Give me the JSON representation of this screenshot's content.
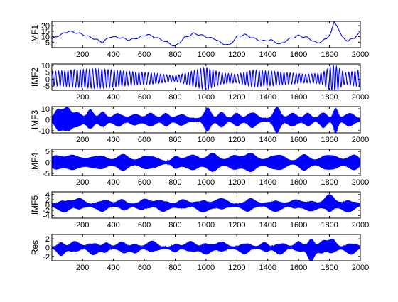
{
  "chart_data": [
    {
      "type": "line",
      "ylabel": "IMF1",
      "xlim": [
        1,
        2000
      ],
      "ylim": [
        0,
        24
      ],
      "yticks": [
        5,
        10,
        15,
        20
      ],
      "xticks": [
        200,
        400,
        600,
        800,
        1000,
        1200,
        1400,
        1600,
        1800,
        2000
      ],
      "xtick_labels": [
        "200",
        "400",
        "600",
        "800",
        "1000",
        "1200",
        "1400",
        "1600",
        "1800",
        "2000"
      ],
      "ytick_labels": [
        "5",
        "10",
        "15",
        "20"
      ],
      "series_color": "#0000ff",
      "style": "slow",
      "keypoints": [
        [
          1,
          8
        ],
        [
          60,
          12
        ],
        [
          110,
          15
        ],
        [
          180,
          13
        ],
        [
          260,
          9
        ],
        [
          330,
          5
        ],
        [
          380,
          10
        ],
        [
          450,
          9
        ],
        [
          500,
          7
        ],
        [
          560,
          9
        ],
        [
          620,
          12
        ],
        [
          700,
          8
        ],
        [
          760,
          4
        ],
        [
          800,
          1
        ],
        [
          860,
          9
        ],
        [
          920,
          13
        ],
        [
          980,
          11
        ],
        [
          1020,
          9
        ],
        [
          1060,
          8
        ],
        [
          1100,
          4
        ],
        [
          1150,
          2
        ],
        [
          1200,
          10
        ],
        [
          1250,
          12
        ],
        [
          1300,
          9
        ],
        [
          1360,
          6
        ],
        [
          1420,
          7
        ],
        [
          1480,
          3
        ],
        [
          1540,
          8
        ],
        [
          1600,
          11
        ],
        [
          1660,
          9
        ],
        [
          1720,
          4
        ],
        [
          1780,
          8
        ],
        [
          1810,
          14
        ],
        [
          1830,
          23
        ],
        [
          1850,
          20
        ],
        [
          1880,
          10
        ],
        [
          1920,
          6
        ],
        [
          1960,
          9
        ],
        [
          2000,
          14
        ]
      ]
    },
    {
      "type": "line",
      "ylabel": "IMF2",
      "xlim": [
        1,
        2000
      ],
      "ylim": [
        -8,
        11
      ],
      "yticks": [
        -5,
        0,
        5,
        10
      ],
      "xticks": [
        200,
        400,
        600,
        800,
        1000,
        1200,
        1400,
        1600,
        1800,
        2000
      ],
      "xtick_labels": [
        "200",
        "400",
        "600",
        "800",
        "1000",
        "1200",
        "1400",
        "1600",
        "1800",
        "2000"
      ],
      "ytick_labels": [
        "-5",
        "0",
        "5",
        "10"
      ],
      "series_color": "#0000ff",
      "style": "wave",
      "period": 20,
      "offset": 0.5,
      "amp_base": 1.5,
      "amp_points": [
        [
          1,
          5
        ],
        [
          120,
          6
        ],
        [
          300,
          7
        ],
        [
          500,
          5
        ],
        [
          650,
          4
        ],
        [
          800,
          2
        ],
        [
          900,
          5
        ],
        [
          1000,
          8
        ],
        [
          1100,
          4
        ],
        [
          1200,
          3
        ],
        [
          1300,
          6
        ],
        [
          1450,
          5
        ],
        [
          1550,
          4
        ],
        [
          1650,
          3
        ],
        [
          1750,
          4
        ],
        [
          1830,
          10
        ],
        [
          1900,
          4
        ],
        [
          2000,
          6
        ]
      ]
    },
    {
      "type": "line",
      "ylabel": "IMF3",
      "xlim": [
        1,
        2000
      ],
      "ylim": [
        -12,
        12
      ],
      "yticks": [
        -10,
        0,
        10
      ],
      "xticks": [
        200,
        400,
        600,
        800,
        1000,
        1200,
        1400,
        1600,
        1800,
        2000
      ],
      "xtick_labels": [
        "200",
        "400",
        "600",
        "800",
        "1000",
        "1200",
        "1400",
        "1600",
        "1800",
        "2000"
      ],
      "ytick_labels": [
        "-10",
        "0",
        "10"
      ],
      "series_color": "#0000ff",
      "style": "dense",
      "period": 5,
      "offset": 0,
      "amp_base": 1.5,
      "bursts": [
        [
          40,
          30,
          8
        ],
        [
          100,
          40,
          10
        ],
        [
          170,
          35,
          5
        ],
        [
          250,
          30,
          8
        ],
        [
          330,
          30,
          6
        ],
        [
          430,
          40,
          5
        ],
        [
          540,
          40,
          4
        ],
        [
          640,
          40,
          5
        ],
        [
          740,
          30,
          5
        ],
        [
          840,
          40,
          4
        ],
        [
          1010,
          30,
          10
        ],
        [
          1100,
          30,
          6
        ],
        [
          1200,
          30,
          5
        ],
        [
          1300,
          40,
          6
        ],
        [
          1460,
          30,
          11
        ],
        [
          1560,
          40,
          5
        ],
        [
          1660,
          30,
          5
        ],
        [
          1760,
          30,
          6
        ],
        [
          1840,
          20,
          11
        ],
        [
          1930,
          40,
          5
        ]
      ]
    },
    {
      "type": "line",
      "ylabel": "IMF4",
      "xlim": [
        1,
        2000
      ],
      "ylim": [
        -6,
        6
      ],
      "yticks": [
        -5,
        0,
        5
      ],
      "xticks": [
        200,
        400,
        600,
        800,
        1000,
        1200,
        1400,
        1600,
        1800,
        2000
      ],
      "xtick_labels": [
        "200",
        "400",
        "600",
        "800",
        "1000",
        "1200",
        "1400",
        "1600",
        "1800",
        "2000"
      ],
      "ytick_labels": [
        "-5",
        "0",
        "5"
      ],
      "series_color": "#0000ff",
      "style": "dense",
      "period": 4,
      "offset": 0,
      "amp_base": 0.8,
      "bursts": [
        [
          40,
          50,
          3
        ],
        [
          150,
          60,
          3
        ],
        [
          300,
          60,
          3
        ],
        [
          460,
          60,
          3
        ],
        [
          630,
          60,
          3
        ],
        [
          800,
          30,
          2
        ],
        [
          900,
          60,
          3
        ],
        [
          1040,
          60,
          3.5
        ],
        [
          1200,
          60,
          3
        ],
        [
          1300,
          50,
          3.5
        ],
        [
          1460,
          60,
          3.5
        ],
        [
          1640,
          50,
          3
        ],
        [
          1800,
          60,
          3.5
        ],
        [
          1950,
          50,
          3
        ]
      ]
    },
    {
      "type": "line",
      "ylabel": "IMF5",
      "xlim": [
        1,
        2000
      ],
      "ylim": [
        -5,
        5
      ],
      "yticks": [
        -4,
        -2,
        0,
        2,
        4
      ],
      "xticks": [
        200,
        400,
        600,
        800,
        1000,
        1200,
        1400,
        1600,
        1800,
        2000
      ],
      "xtick_labels": [
        "200",
        "400",
        "600",
        "800",
        "1000",
        "1200",
        "1400",
        "1600",
        "1800",
        "2000"
      ],
      "ytick_labels": [
        "-4",
        "-2",
        "0",
        "2",
        "4"
      ],
      "series_color": "#0000ff",
      "style": "dense",
      "period": 3,
      "offset": 0,
      "amp_base": 0.6,
      "bursts": [
        [
          80,
          50,
          2.2
        ],
        [
          180,
          40,
          2.0
        ],
        [
          330,
          50,
          2.0
        ],
        [
          460,
          40,
          1.8
        ],
        [
          600,
          50,
          1.8
        ],
        [
          720,
          50,
          2.0
        ],
        [
          850,
          40,
          1.6
        ],
        [
          980,
          50,
          2.2
        ],
        [
          1100,
          50,
          2.0
        ],
        [
          1280,
          50,
          2.2
        ],
        [
          1450,
          50,
          2.0
        ],
        [
          1580,
          40,
          1.5
        ],
        [
          1680,
          50,
          1.8
        ],
        [
          1800,
          40,
          3.5
        ],
        [
          1920,
          50,
          2.2
        ]
      ]
    },
    {
      "type": "line",
      "ylabel": "Res",
      "xlim": [
        1,
        2000
      ],
      "ylim": [
        -3,
        3
      ],
      "yticks": [
        -2,
        0,
        2
      ],
      "xticks": [
        200,
        400,
        600,
        800,
        1000,
        1200,
        1400,
        1600,
        1800,
        2000
      ],
      "xtick_labels": [
        "200",
        "400",
        "600",
        "800",
        "1000",
        "1200",
        "1400",
        "1600",
        "1800",
        "2000"
      ],
      "ytick_labels": [
        "-2",
        "0",
        "2"
      ],
      "series_color": "#0000ff",
      "style": "dense",
      "period": 3,
      "offset": 0,
      "amp_base": 0.3,
      "bursts": [
        [
          60,
          30,
          1.6
        ],
        [
          150,
          40,
          1.2
        ],
        [
          270,
          40,
          1.4
        ],
        [
          350,
          30,
          1.0
        ],
        [
          460,
          40,
          1.2
        ],
        [
          540,
          30,
          1.0
        ],
        [
          650,
          40,
          1.3
        ],
        [
          800,
          30,
          0.8
        ],
        [
          900,
          40,
          1.2
        ],
        [
          1000,
          40,
          1.3
        ],
        [
          1100,
          40,
          1.1
        ],
        [
          1250,
          40,
          1.2
        ],
        [
          1380,
          30,
          1.0
        ],
        [
          1480,
          40,
          1.3
        ],
        [
          1600,
          30,
          1.2
        ],
        [
          1680,
          30,
          2.8
        ],
        [
          1760,
          40,
          1.4
        ],
        [
          1820,
          30,
          1.6
        ],
        [
          1940,
          40,
          1.3
        ]
      ]
    }
  ]
}
